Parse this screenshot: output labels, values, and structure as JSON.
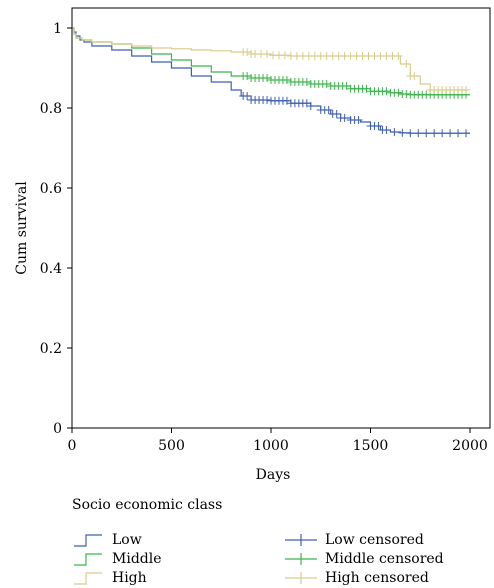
{
  "chart_data": {
    "type": "line",
    "xlabel": "Days",
    "ylabel": "Cum survival",
    "xlim": [
      0,
      2050
    ],
    "ylim": [
      0,
      1.0
    ],
    "x_ticks": [
      0,
      500,
      1000,
      1500,
      2000
    ],
    "y_ticks": [
      0,
      0.2,
      0.4,
      0.6,
      0.8,
      1
    ],
    "x_tick_labels": [
      "0",
      "500",
      "1000",
      "1500",
      "2000"
    ],
    "y_tick_labels": [
      "0",
      "0.2",
      "0.4",
      "0.6",
      "0.8",
      "1"
    ],
    "step": true,
    "series": [
      {
        "name": "Low",
        "color": "#3f5fb0",
        "x": [
          0,
          10,
          20,
          40,
          60,
          100,
          200,
          300,
          400,
          500,
          600,
          700,
          800,
          850,
          900,
          1000,
          1100,
          1200,
          1250,
          1300,
          1350,
          1400,
          1450,
          1500,
          1550,
          1600,
          1650,
          1700,
          2000
        ],
        "y": [
          1.0,
          0.99,
          0.98,
          0.97,
          0.965,
          0.955,
          0.945,
          0.93,
          0.915,
          0.9,
          0.88,
          0.865,
          0.845,
          0.83,
          0.82,
          0.818,
          0.812,
          0.805,
          0.795,
          0.785,
          0.775,
          0.77,
          0.765,
          0.755,
          0.745,
          0.74,
          0.738,
          0.737,
          0.737
        ],
        "censored_x": [
          860,
          880,
          900,
          920,
          940,
          960,
          980,
          1000,
          1020,
          1040,
          1060,
          1080,
          1100,
          1120,
          1140,
          1160,
          1180,
          1200,
          1250,
          1270,
          1290,
          1310,
          1330,
          1350,
          1370,
          1400,
          1420,
          1440,
          1500,
          1520,
          1540,
          1560,
          1580,
          1620,
          1660,
          1700,
          1740,
          1780,
          1820,
          1860,
          1900,
          1940,
          1980
        ]
      },
      {
        "name": "Middle",
        "color": "#3cb44b",
        "x": [
          0,
          10,
          20,
          50,
          100,
          200,
          300,
          400,
          500,
          600,
          700,
          800,
          900,
          1000,
          1100,
          1200,
          1300,
          1400,
          1500,
          1600,
          1650,
          1700,
          2000
        ],
        "y": [
          1.0,
          0.985,
          0.975,
          0.97,
          0.965,
          0.96,
          0.95,
          0.935,
          0.92,
          0.905,
          0.89,
          0.88,
          0.875,
          0.87,
          0.865,
          0.86,
          0.855,
          0.848,
          0.842,
          0.838,
          0.835,
          0.833,
          0.833
        ],
        "censored_x": [
          860,
          880,
          900,
          920,
          940,
          960,
          980,
          1000,
          1020,
          1040,
          1060,
          1080,
          1100,
          1120,
          1140,
          1160,
          1180,
          1200,
          1220,
          1240,
          1260,
          1280,
          1300,
          1320,
          1340,
          1360,
          1380,
          1400,
          1420,
          1440,
          1460,
          1480,
          1500,
          1520,
          1540,
          1560,
          1580,
          1600,
          1620,
          1640,
          1660,
          1680,
          1700,
          1720,
          1740,
          1760,
          1780,
          1800,
          1820,
          1840,
          1860,
          1880,
          1900,
          1920,
          1940,
          1960,
          1980
        ]
      },
      {
        "name": "High",
        "color": "#d8cc8c",
        "x": [
          0,
          10,
          20,
          50,
          100,
          200,
          300,
          400,
          500,
          600,
          700,
          800,
          900,
          1000,
          1100,
          1600,
          1650,
          1700,
          1750,
          1800,
          2000
        ],
        "y": [
          1.0,
          0.985,
          0.975,
          0.97,
          0.965,
          0.96,
          0.955,
          0.95,
          0.948,
          0.945,
          0.943,
          0.94,
          0.935,
          0.932,
          0.93,
          0.93,
          0.91,
          0.88,
          0.86,
          0.845,
          0.845
        ],
        "censored_x": [
          860,
          880,
          900,
          920,
          950,
          980,
          1010,
          1040,
          1070,
          1100,
          1130,
          1160,
          1190,
          1220,
          1250,
          1280,
          1310,
          1340,
          1370,
          1400,
          1430,
          1460,
          1490,
          1520,
          1550,
          1580,
          1610,
          1640,
          1680,
          1700,
          1720,
          1800,
          1820,
          1840,
          1860,
          1880,
          1900,
          1920,
          1940,
          1960,
          1980
        ]
      }
    ]
  },
  "legend": {
    "title": "Socio economic class",
    "items": [
      {
        "label": "Low",
        "kind": "step",
        "color": "#3f5fb0"
      },
      {
        "label": "Middle",
        "kind": "step",
        "color": "#3cb44b"
      },
      {
        "label": "High",
        "kind": "step",
        "color": "#d8cc8c"
      },
      {
        "label": "Low censored",
        "kind": "cross",
        "color": "#3f5fb0"
      },
      {
        "label": "Middle censored",
        "kind": "cross",
        "color": "#3cb44b"
      },
      {
        "label": "High censored",
        "kind": "cross",
        "color": "#d8cc8c"
      }
    ]
  }
}
